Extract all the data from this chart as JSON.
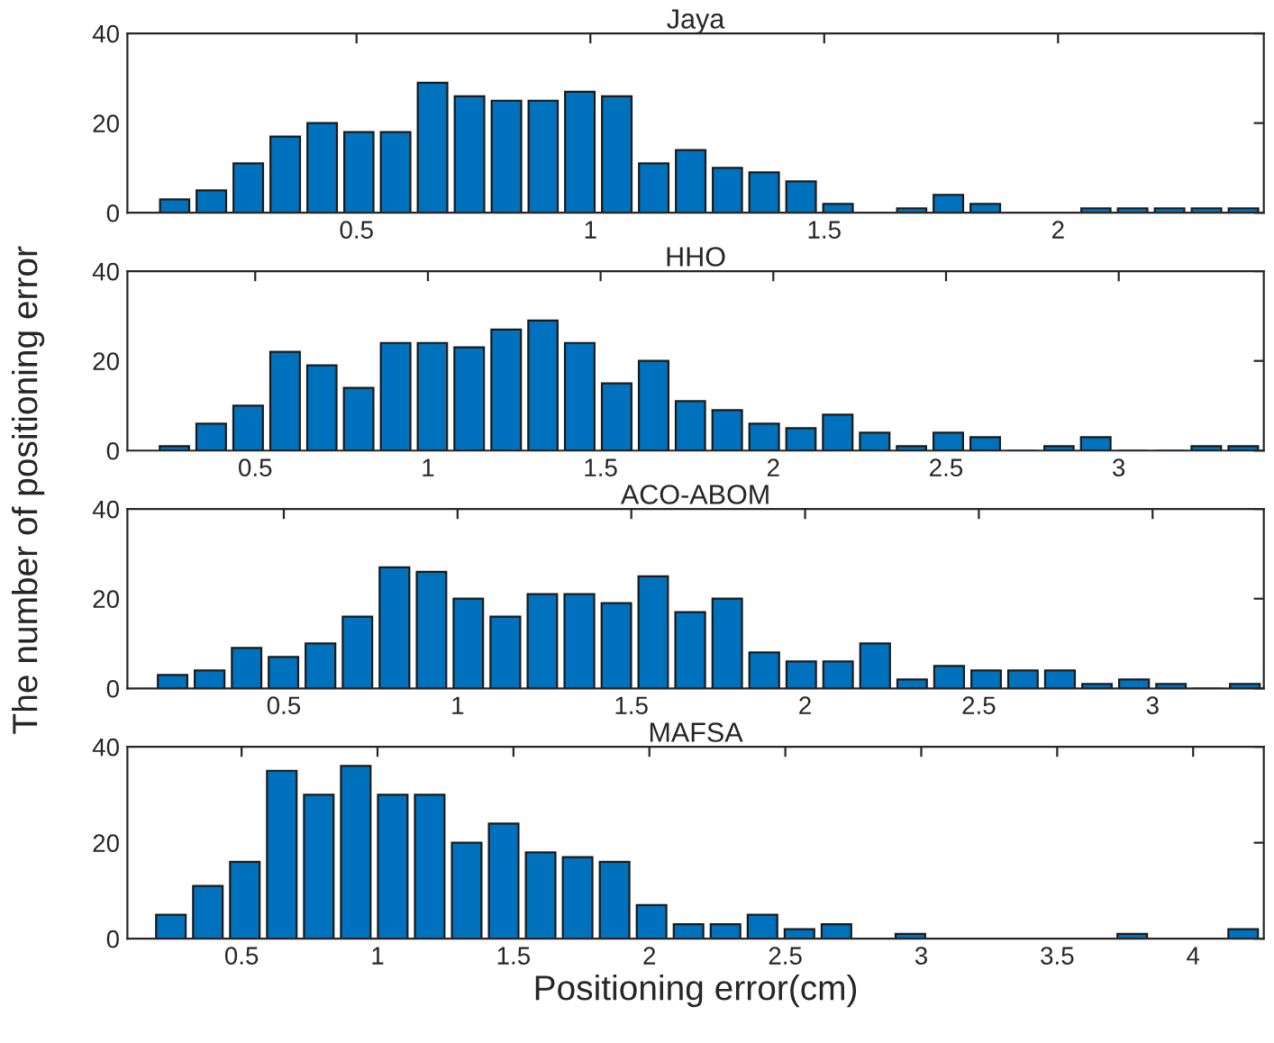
{
  "chart_data": [
    {
      "type": "histogram",
      "title": "Jaya",
      "ylabel": "The number of positioning error",
      "color": "#0072bd",
      "bins": [
        0.072,
        0.15,
        0.229,
        0.308,
        0.387,
        0.466,
        0.544,
        0.623,
        0.702,
        0.781,
        0.86,
        0.938,
        1.017,
        1.096,
        1.175,
        1.254,
        1.332,
        1.411,
        1.49,
        1.569,
        1.648,
        1.726,
        1.805,
        1.884,
        1.963,
        2.042,
        2.12,
        2.199,
        2.278,
        2.357,
        2.436
      ],
      "values": [
        3,
        5,
        11,
        17,
        20,
        18,
        18,
        29,
        26,
        25,
        25,
        27,
        26,
        11,
        14,
        10,
        9,
        7,
        2,
        0,
        1,
        4,
        2,
        0,
        0,
        1,
        1,
        1,
        1,
        1
      ],
      "xlim": [
        0.01,
        2.44
      ],
      "xticks": [
        0.5,
        1,
        1.5,
        2
      ],
      "ylim": [
        0,
        40
      ],
      "yticks": [
        0,
        20,
        40
      ]
    },
    {
      "type": "histogram",
      "title": "HHO",
      "color": "#0072bd",
      "bins": [
        0.213,
        0.319,
        0.426,
        0.533,
        0.64,
        0.746,
        0.853,
        0.96,
        1.066,
        1.173,
        1.28,
        1.386,
        1.493,
        1.6,
        1.707,
        1.813,
        1.92,
        2.027,
        2.133,
        2.24,
        2.347,
        2.453,
        2.56,
        2.667,
        2.774,
        2.88,
        2.987,
        3.094,
        3.2,
        3.307,
        3.414
      ],
      "values": [
        1,
        6,
        10,
        22,
        19,
        14,
        24,
        24,
        23,
        27,
        29,
        24,
        15,
        20,
        11,
        9,
        6,
        5,
        8,
        4,
        1,
        4,
        3,
        0,
        1,
        3,
        0,
        0,
        1,
        1
      ],
      "xlim": [
        0.13,
        3.42
      ],
      "xticks": [
        0.5,
        1,
        1.5,
        2,
        2.5,
        3
      ],
      "ylim": [
        0,
        40
      ],
      "yticks": [
        0,
        20,
        40
      ]
    },
    {
      "type": "histogram",
      "title": "ACO-ABOM",
      "color": "#0072bd",
      "bins": [
        0.127,
        0.233,
        0.34,
        0.446,
        0.552,
        0.659,
        0.765,
        0.872,
        0.978,
        1.084,
        1.191,
        1.297,
        1.404,
        1.51,
        1.616,
        1.723,
        1.829,
        1.936,
        2.042,
        2.148,
        2.255,
        2.361,
        2.468,
        2.574,
        2.68,
        2.787,
        2.893,
        3.0,
        3.106,
        3.212,
        3.319
      ],
      "values": [
        3,
        4,
        9,
        7,
        10,
        16,
        27,
        26,
        20,
        16,
        21,
        21,
        19,
        25,
        17,
        20,
        8,
        6,
        6,
        10,
        2,
        5,
        4,
        4,
        4,
        1,
        2,
        1,
        0,
        1
      ],
      "xlim": [
        0.05,
        3.32
      ],
      "xticks": [
        0.5,
        1,
        1.5,
        2,
        2.5,
        3
      ],
      "ylim": [
        0,
        40
      ],
      "yticks": [
        0,
        20,
        40
      ]
    },
    {
      "type": "histogram",
      "title": "MAFSA",
      "xlabel": "Positioning error(cm)",
      "color": "#0072bd",
      "bins": [
        0.172,
        0.308,
        0.444,
        0.58,
        0.716,
        0.852,
        0.988,
        1.124,
        1.26,
        1.396,
        1.532,
        1.668,
        1.804,
        1.94,
        2.076,
        2.212,
        2.348,
        2.484,
        2.62,
        2.756,
        2.892,
        3.028,
        3.164,
        3.3,
        3.436,
        3.572,
        3.708,
        3.844,
        3.98,
        4.116,
        4.252
      ],
      "values": [
        5,
        11,
        16,
        35,
        30,
        36,
        30,
        30,
        20,
        24,
        18,
        17,
        16,
        7,
        3,
        3,
        5,
        2,
        3,
        0,
        1,
        0,
        0,
        0,
        0,
        0,
        1,
        0,
        0,
        2
      ],
      "xlim": [
        0.08,
        4.26
      ],
      "xticks": [
        0.5,
        1,
        1.5,
        2,
        2.5,
        3,
        3.5,
        4
      ],
      "ylim": [
        0,
        40
      ],
      "yticks": [
        0,
        20,
        40
      ]
    }
  ]
}
